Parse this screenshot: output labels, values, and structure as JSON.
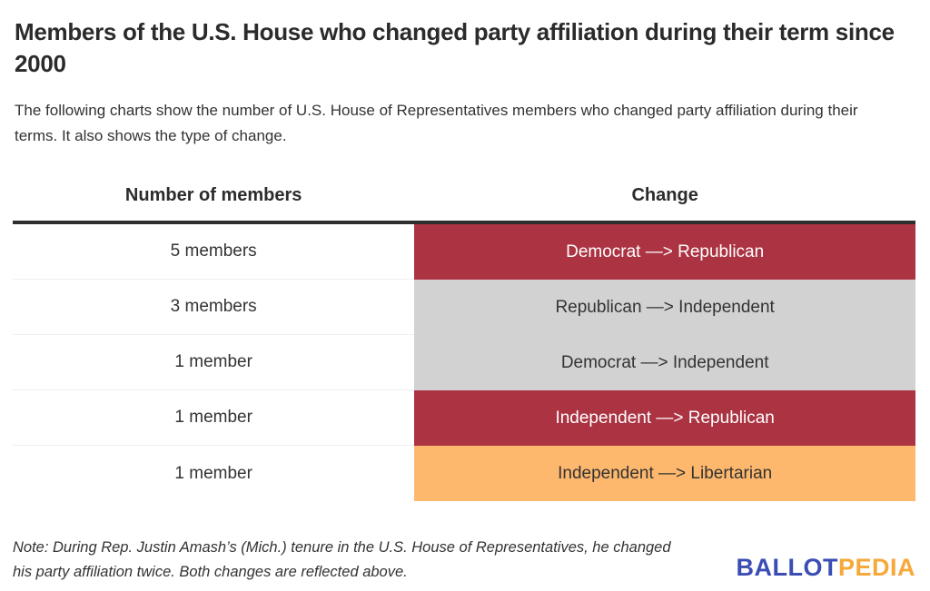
{
  "title": "Members of the U.S. House who changed party affiliation during their term since 2000",
  "subtitle": "The following charts show the number of U.S. House of Representatives members who changed party affiliation during their terms. It also shows the type of change.",
  "table": {
    "headers": {
      "members": "Number of members",
      "change": "Change"
    },
    "rows": [
      {
        "members": "5 members",
        "change": "Democrat —> Republican",
        "bg": "#AB3342",
        "fg": "#FFFFFF"
      },
      {
        "members": "3 members",
        "change": "Republican —> Independent",
        "bg": "#D2D2D2",
        "fg": "#333333"
      },
      {
        "members": "1 member",
        "change": "Democrat —> Independent",
        "bg": "#D2D2D2",
        "fg": "#333333"
      },
      {
        "members": "1 member",
        "change": "Independent —> Republican",
        "bg": "#AB3342",
        "fg": "#FFFFFF"
      },
      {
        "members": "1 member",
        "change": "Independent —> Libertarian",
        "bg": "#FDB86D",
        "fg": "#333333"
      }
    ]
  },
  "note": "Note: During Rep. Justin Amash’s (Mich.) tenure in the U.S. House of Representatives, he changed his party affiliation twice. Both changes are reflected above.",
  "logo": {
    "ballot": "BALLOT",
    "pedia": "PEDIA",
    "ballot_color": "#3B4DB3",
    "pedia_color": "#F6A83B"
  },
  "colors": {
    "title_text": "#2B2B2B",
    "body_text": "#333333",
    "header_border": "#2E2E2E",
    "row_divider": "#EFEFEF",
    "republican_red": "#AB3342",
    "neutral_gray": "#D2D2D2",
    "libertarian_orange": "#FDB86D",
    "background": "#FFFFFF"
  },
  "chart_data": {
    "type": "table",
    "title": "Members of the U.S. House who changed party affiliation during their term since 2000",
    "columns": [
      "Number of members",
      "Change"
    ],
    "rows": [
      {
        "number_of_members": 5,
        "change": "Democrat -> Republican"
      },
      {
        "number_of_members": 3,
        "change": "Republican -> Independent"
      },
      {
        "number_of_members": 1,
        "change": "Democrat -> Independent"
      },
      {
        "number_of_members": 1,
        "change": "Independent -> Republican"
      },
      {
        "number_of_members": 1,
        "change": "Independent -> Libertarian"
      }
    ]
  }
}
